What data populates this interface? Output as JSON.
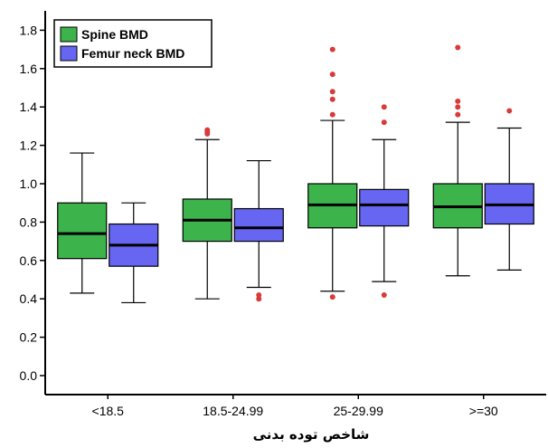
{
  "chart_data": {
    "type": "boxplot",
    "xlabel": "شاخص توده بدنی",
    "ylabel": "",
    "ylim": [
      -0.1,
      1.85
    ],
    "yticks": [
      "0.0",
      "0.2",
      "0.4",
      "0.6",
      "0.8",
      "1.0",
      "1.2",
      "1.4",
      "1.6",
      "1.8"
    ],
    "grid": false,
    "legend_position": "top-left",
    "categories": [
      "<18.5",
      "18.5-24.99",
      "25-29.99",
      ">=30"
    ],
    "series": [
      {
        "name": "Spine BMD",
        "color": "#3cb44b",
        "boxes": [
          {
            "whisker_low": 0.43,
            "q1": 0.61,
            "median": 0.74,
            "q3": 0.9,
            "whisker_high": 1.16,
            "outliers": []
          },
          {
            "whisker_low": 0.4,
            "q1": 0.7,
            "median": 0.81,
            "q3": 0.92,
            "whisker_high": 1.23,
            "outliers": [
              1.26,
              1.27,
              1.28
            ]
          },
          {
            "whisker_low": 0.44,
            "q1": 0.77,
            "median": 0.89,
            "q3": 1.0,
            "whisker_high": 1.33,
            "outliers": [
              0.41,
              1.36,
              1.44,
              1.48,
              1.57,
              1.7
            ]
          },
          {
            "whisker_low": 0.52,
            "q1": 0.77,
            "median": 0.88,
            "q3": 1.0,
            "whisker_high": 1.32,
            "outliers": [
              1.36,
              1.4,
              1.43,
              1.71
            ]
          }
        ]
      },
      {
        "name": "Femur neck BMD",
        "color": "#6666f2",
        "boxes": [
          {
            "whisker_low": 0.38,
            "q1": 0.57,
            "median": 0.68,
            "q3": 0.79,
            "whisker_high": 0.9,
            "outliers": []
          },
          {
            "whisker_low": 0.46,
            "q1": 0.7,
            "median": 0.77,
            "q3": 0.87,
            "whisker_high": 1.12,
            "outliers": [
              0.4,
              0.42
            ]
          },
          {
            "whisker_low": 0.49,
            "q1": 0.78,
            "median": 0.89,
            "q3": 0.97,
            "whisker_high": 1.23,
            "outliers": [
              0.42,
              1.32,
              1.4
            ]
          },
          {
            "whisker_low": 0.55,
            "q1": 0.79,
            "median": 0.89,
            "q3": 1.0,
            "whisker_high": 1.29,
            "outliers": [
              1.38
            ]
          }
        ]
      }
    ],
    "outlier_color": "#d93a3a"
  }
}
